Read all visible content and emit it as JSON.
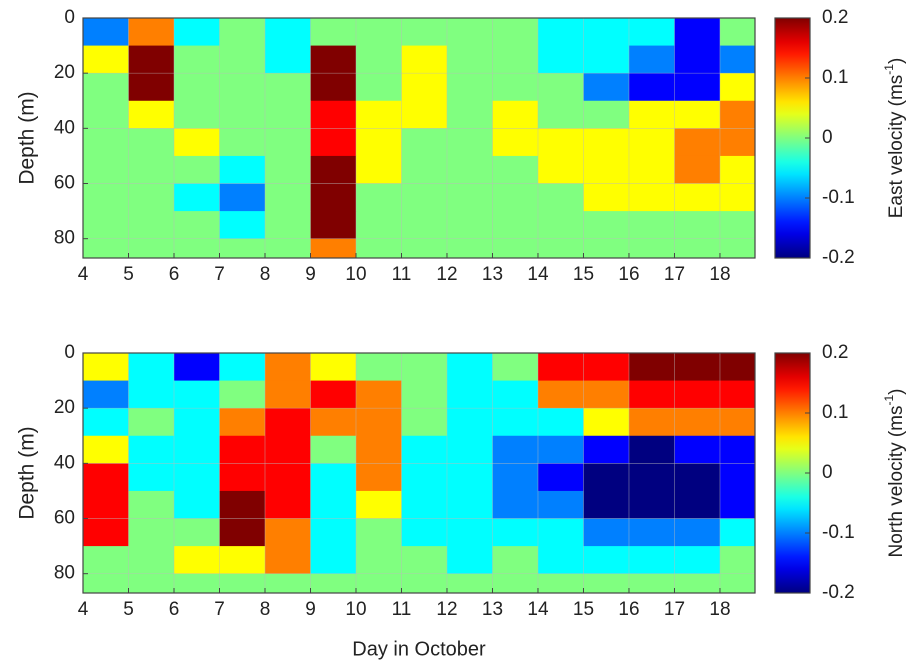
{
  "chart_data": [
    {
      "type": "heatmap",
      "ylabel": "Depth (m)",
      "colorbar_label": [
        "East velocity (ms",
        "-1",
        ")"
      ],
      "x": [
        4,
        5,
        6,
        7,
        8,
        9,
        10,
        11,
        12,
        13,
        14,
        15,
        16,
        17,
        18
      ],
      "depth": [
        0,
        10,
        20,
        30,
        40,
        50,
        60,
        70,
        80
      ],
      "z": [
        [
          -0.1,
          0.1,
          -0.05,
          0,
          -0.05,
          0,
          0,
          0,
          0,
          0,
          -0.05,
          -0.05,
          -0.05,
          -0.15,
          0
        ],
        [
          0.05,
          0.2,
          0,
          0,
          -0.05,
          0.2,
          0,
          0.05,
          0,
          0,
          -0.05,
          -0.05,
          -0.1,
          -0.15,
          -0.1
        ],
        [
          0,
          0.2,
          0,
          0,
          0,
          0.2,
          0,
          0.05,
          0,
          0,
          0,
          -0.1,
          -0.15,
          -0.15,
          0.05
        ],
        [
          0,
          0.05,
          0,
          0,
          0,
          0.15,
          0.05,
          0.05,
          0,
          0.05,
          0,
          0,
          0.05,
          0.05,
          0.1
        ],
        [
          0,
          0,
          0.05,
          0,
          0,
          0.15,
          0.05,
          0,
          0,
          0.05,
          0.05,
          0.05,
          0.05,
          0.1,
          0.1
        ],
        [
          0,
          0,
          0,
          -0.05,
          0,
          0.2,
          0.05,
          0,
          0,
          0,
          0.05,
          0.05,
          0.05,
          0.1,
          0.05
        ],
        [
          0,
          0,
          -0.05,
          -0.1,
          0,
          0.2,
          0,
          0,
          0,
          0,
          0,
          0.05,
          0.05,
          0.05,
          0.05
        ],
        [
          0,
          0,
          0,
          -0.05,
          0,
          0.2,
          0,
          0,
          0,
          0,
          0,
          0,
          0,
          0,
          0
        ],
        [
          0,
          0,
          0,
          0,
          0,
          0.1,
          0,
          0,
          0,
          0,
          0,
          0,
          0,
          0,
          0
        ]
      ],
      "xlim": [
        4,
        18.77
      ],
      "ylim": [
        0,
        87
      ],
      "zlim": [
        -0.2,
        0.2
      ],
      "xticks": [
        4,
        5,
        6,
        7,
        8,
        9,
        10,
        11,
        12,
        13,
        14,
        15,
        16,
        17,
        18
      ],
      "yticks": [
        0,
        20,
        40,
        60,
        80
      ],
      "zticks": [
        0.2,
        0.1,
        0,
        -0.1,
        -0.2
      ],
      "colormap": "jet",
      "grid": true
    },
    {
      "type": "heatmap",
      "ylabel": "Depth (m)",
      "xlabel": "Day in October",
      "colorbar_label": [
        "North velocity (ms",
        "-1",
        ")"
      ],
      "x": [
        4,
        5,
        6,
        7,
        8,
        9,
        10,
        11,
        12,
        13,
        14,
        15,
        16,
        17,
        18
      ],
      "depth": [
        0,
        10,
        20,
        30,
        40,
        50,
        60,
        70,
        80
      ],
      "z": [
        [
          0.05,
          -0.05,
          -0.15,
          -0.05,
          0.1,
          0.05,
          0,
          0,
          -0.05,
          0,
          0.15,
          0.15,
          0.2,
          0.2,
          0.2
        ],
        [
          -0.1,
          -0.05,
          -0.05,
          0,
          0.1,
          0.15,
          0.1,
          0,
          -0.05,
          -0.05,
          0.1,
          0.1,
          0.15,
          0.15,
          0.15
        ],
        [
          -0.05,
          0,
          -0.05,
          0.1,
          0.15,
          0.1,
          0.1,
          0,
          -0.05,
          -0.05,
          -0.05,
          0.05,
          0.1,
          0.1,
          0.1
        ],
        [
          0.05,
          -0.05,
          -0.05,
          0.15,
          0.15,
          0,
          0.1,
          -0.05,
          -0.05,
          -0.1,
          -0.1,
          -0.15,
          -0.2,
          -0.15,
          -0.15
        ],
        [
          0.15,
          -0.05,
          -0.05,
          0.15,
          0.15,
          -0.05,
          0.1,
          -0.05,
          -0.05,
          -0.1,
          -0.15,
          -0.2,
          -0.2,
          -0.2,
          -0.15
        ],
        [
          0.15,
          0,
          -0.05,
          0.2,
          0.15,
          -0.05,
          0.05,
          -0.05,
          -0.05,
          -0.1,
          -0.1,
          -0.2,
          -0.2,
          -0.2,
          -0.15
        ],
        [
          0.15,
          0,
          0,
          0.2,
          0.1,
          -0.05,
          0,
          -0.05,
          -0.05,
          -0.05,
          -0.05,
          -0.1,
          -0.1,
          -0.1,
          -0.05
        ],
        [
          0,
          0,
          0.05,
          0.05,
          0.1,
          -0.05,
          0,
          0,
          -0.05,
          0,
          -0.05,
          -0.05,
          -0.05,
          -0.05,
          0
        ],
        [
          0,
          0,
          0,
          0,
          0,
          0,
          0,
          0,
          0,
          0,
          0,
          0,
          0,
          0,
          0
        ]
      ],
      "xlim": [
        4,
        18.77
      ],
      "ylim": [
        0,
        87
      ],
      "zlim": [
        -0.2,
        0.2
      ],
      "xticks": [
        4,
        5,
        6,
        7,
        8,
        9,
        10,
        11,
        12,
        13,
        14,
        15,
        16,
        17,
        18
      ],
      "yticks": [
        0,
        20,
        40,
        60,
        80
      ],
      "zticks": [
        0.2,
        0.1,
        0,
        -0.1,
        -0.2
      ],
      "colormap": "jet",
      "grid": true
    }
  ]
}
